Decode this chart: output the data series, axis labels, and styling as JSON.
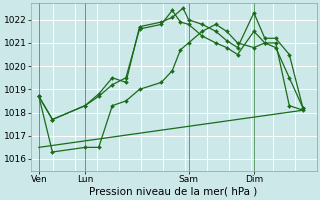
{
  "background_color": "#cce8e8",
  "grid_color": "#aadddd",
  "line_color": "#1a6b1a",
  "xlabel": "Pression niveau de la mer( hPa )",
  "ylim": [
    1015.5,
    1022.7
  ],
  "yticks": [
    1016,
    1017,
    1018,
    1019,
    1020,
    1021,
    1022
  ],
  "xlim": [
    0,
    10.5
  ],
  "xtick_labels": [
    "Ven",
    "Lun",
    "Sam",
    "Dim"
  ],
  "xtick_positions": [
    0.3,
    2.0,
    5.8,
    8.2
  ],
  "vline_positions": [
    0.3,
    2.0,
    5.8,
    8.2
  ],
  "series": [
    {
      "x": [
        0.3,
        0.8,
        2.0,
        2.5,
        3.0,
        3.5,
        4.0,
        4.8,
        5.2,
        5.6,
        5.8,
        6.3,
        6.8,
        7.2,
        7.6,
        8.2,
        8.6,
        9.0,
        9.5,
        10.0
      ],
      "y": [
        1018.7,
        1017.7,
        1018.3,
        1018.8,
        1019.5,
        1019.3,
        1021.7,
        1021.9,
        1022.1,
        1022.5,
        1022.0,
        1021.8,
        1021.5,
        1021.1,
        1020.8,
        1022.3,
        1021.2,
        1021.2,
        1020.5,
        1018.2
      ]
    },
    {
      "x": [
        0.3,
        0.8,
        2.0,
        2.5,
        3.0,
        3.5,
        4.0,
        4.8,
        5.2,
        5.5,
        5.8,
        6.3,
        6.8,
        7.2,
        7.6,
        8.2,
        8.6,
        9.0,
        9.5,
        10.0
      ],
      "y": [
        1018.7,
        1017.7,
        1018.3,
        1018.7,
        1019.2,
        1019.5,
        1021.6,
        1021.8,
        1022.4,
        1021.9,
        1021.8,
        1021.3,
        1021.0,
        1020.8,
        1020.5,
        1021.5,
        1021.0,
        1020.8,
        1019.5,
        1018.2
      ]
    },
    {
      "x": [
        0.3,
        0.8,
        2.0,
        2.5,
        3.0,
        3.5,
        4.0,
        4.8,
        5.2,
        5.5,
        5.8,
        6.3,
        6.8,
        7.2,
        7.6,
        8.2,
        8.6,
        9.0,
        9.5,
        10.0
      ],
      "y": [
        1018.7,
        1016.3,
        1016.5,
        1016.5,
        1018.3,
        1018.5,
        1019.0,
        1019.3,
        1019.8,
        1020.7,
        1021.0,
        1021.5,
        1021.8,
        1021.5,
        1021.0,
        1020.8,
        1021.0,
        1021.0,
        1018.3,
        1018.1
      ]
    },
    {
      "x": [
        0.3,
        10.0
      ],
      "y": [
        1016.5,
        1018.1
      ],
      "no_marker": true
    }
  ],
  "marker": "D",
  "marker_size": 2.0,
  "line_width": 0.9,
  "tick_fontsize": 6.5,
  "xlabel_fontsize": 7.5
}
